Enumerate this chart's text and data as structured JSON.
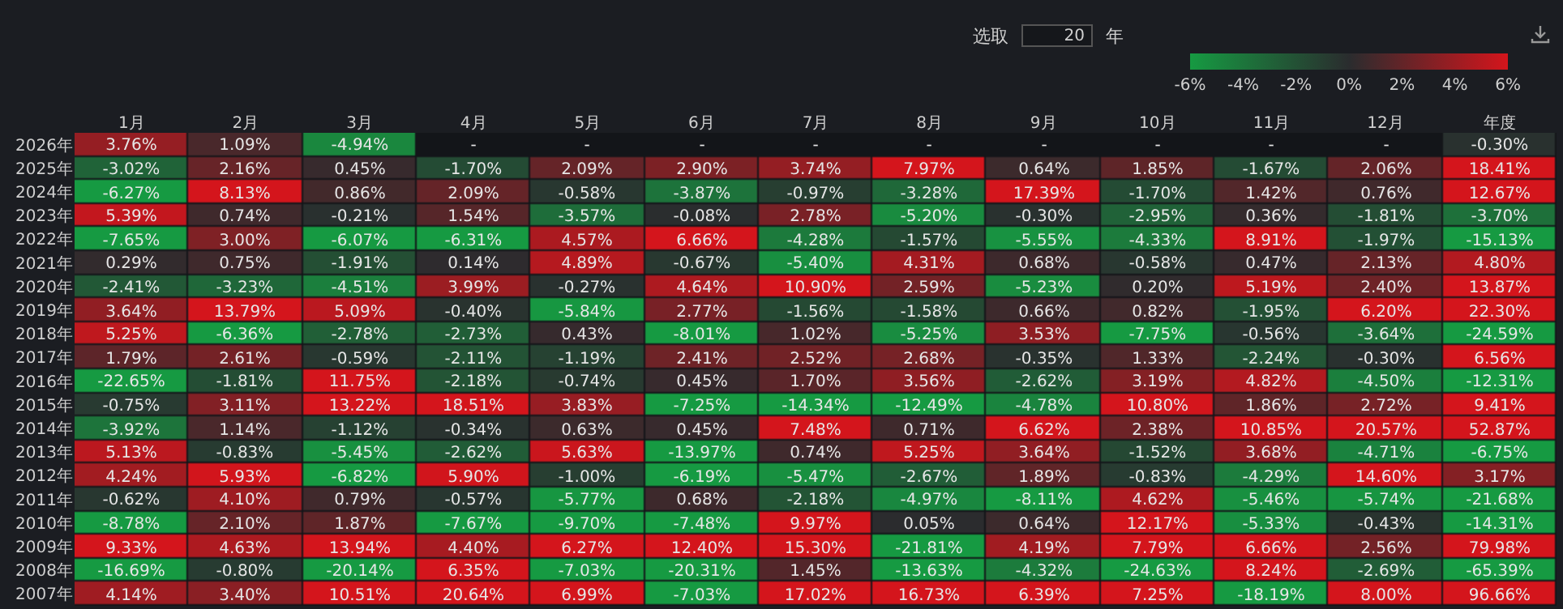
{
  "chart_data": {
    "type": "heatmap",
    "annotations": [
      "选取",
      "20",
      "年"
    ],
    "categories": [
      "1月",
      "2月",
      "3月",
      "4月",
      "5月",
      "6月",
      "7月",
      "8月",
      "9月",
      "10月",
      "11月",
      "12月",
      "年度"
    ],
    "y_categories": [
      "2026年",
      "2025年",
      "2024年",
      "2023年",
      "2022年",
      "2021年",
      "2020年",
      "2019年",
      "2018年",
      "2017年",
      "2016年",
      "2015年",
      "2014年",
      "2013年",
      "2012年",
      "2011年",
      "2010年",
      "2009年",
      "2008年",
      "2007年"
    ],
    "cells": [
      [
        3.76,
        1.09,
        -4.94,
        null,
        null,
        null,
        null,
        null,
        null,
        null,
        null,
        null,
        -0.3
      ],
      [
        -3.02,
        2.16,
        0.45,
        -1.7,
        2.09,
        2.9,
        3.74,
        7.97,
        0.64,
        1.85,
        -1.67,
        2.06,
        18.41
      ],
      [
        -6.27,
        8.13,
        0.86,
        2.09,
        -0.58,
        -3.87,
        -0.97,
        -3.28,
        17.39,
        -1.7,
        1.42,
        0.76,
        12.67
      ],
      [
        5.39,
        0.74,
        -0.21,
        1.54,
        -3.57,
        -0.08,
        2.78,
        -5.2,
        -0.3,
        -2.95,
        0.36,
        -1.81,
        -3.7
      ],
      [
        -7.65,
        3.0,
        -6.07,
        -6.31,
        4.57,
        6.66,
        -4.28,
        -1.57,
        -5.55,
        -4.33,
        8.91,
        -1.97,
        -15.13
      ],
      [
        0.29,
        0.75,
        -1.91,
        0.14,
        4.89,
        -0.67,
        -5.4,
        4.31,
        0.68,
        -0.58,
        0.47,
        2.13,
        4.8
      ],
      [
        -2.41,
        -3.23,
        -4.51,
        3.99,
        -0.27,
        4.64,
        10.9,
        2.59,
        -5.23,
        0.2,
        5.19,
        2.4,
        13.87
      ],
      [
        3.64,
        13.79,
        5.09,
        -0.4,
        -5.84,
        2.77,
        -1.56,
        -1.58,
        0.66,
        0.82,
        -1.95,
        6.2,
        22.3
      ],
      [
        5.25,
        -6.36,
        -2.78,
        -2.73,
        0.43,
        -8.01,
        1.02,
        -5.25,
        3.53,
        -7.75,
        -0.56,
        -3.64,
        -24.59
      ],
      [
        1.79,
        2.61,
        -0.59,
        -2.11,
        -1.19,
        2.41,
        2.52,
        2.68,
        -0.35,
        1.33,
        -2.24,
        -0.3,
        6.56
      ],
      [
        -22.65,
        -1.81,
        11.75,
        -2.18,
        -0.74,
        0.45,
        1.7,
        3.56,
        -2.62,
        3.19,
        4.82,
        -4.5,
        -12.31
      ],
      [
        -0.75,
        3.11,
        13.22,
        18.51,
        3.83,
        -7.25,
        -14.34,
        -12.49,
        -4.78,
        10.8,
        1.86,
        2.72,
        9.41
      ],
      [
        -3.92,
        1.14,
        -1.12,
        -0.34,
        0.63,
        0.45,
        7.48,
        0.71,
        6.62,
        2.38,
        10.85,
        20.57,
        52.87
      ],
      [
        5.13,
        -0.83,
        -5.45,
        -2.62,
        5.63,
        -13.97,
        0.74,
        5.25,
        3.64,
        -1.52,
        3.68,
        -4.71,
        -6.75
      ],
      [
        4.24,
        5.93,
        -6.82,
        5.9,
        -1.0,
        -6.19,
        -5.47,
        -2.67,
        1.89,
        -0.83,
        -4.29,
        14.6,
        3.17
      ],
      [
        -0.62,
        4.1,
        0.79,
        -0.57,
        -5.77,
        0.68,
        -2.18,
        -4.97,
        -8.11,
        4.62,
        -5.46,
        -5.74,
        -21.68
      ],
      [
        -8.78,
        2.1,
        1.87,
        -7.67,
        -9.7,
        -7.48,
        9.97,
        0.05,
        0.64,
        12.17,
        -5.33,
        -0.43,
        -14.31
      ],
      [
        9.33,
        4.63,
        13.94,
        4.4,
        6.27,
        12.4,
        15.3,
        -21.81,
        4.19,
        7.79,
        6.66,
        2.56,
        79.98
      ],
      [
        -16.69,
        -0.8,
        -20.14,
        6.35,
        -7.03,
        -20.31,
        1.45,
        -13.63,
        -4.32,
        -24.63,
        8.24,
        -2.69,
        -65.39
      ],
      [
        4.14,
        3.4,
        10.51,
        20.64,
        6.99,
        -7.03,
        17.02,
        16.73,
        6.39,
        7.25,
        -18.19,
        8.0,
        96.66
      ]
    ],
    "cell_labels": [
      [
        "3.76%",
        "1.09%",
        "-4.94%",
        "-",
        "-",
        "-",
        "-",
        "-",
        "-",
        "-",
        "-",
        "-",
        "-0.30%"
      ],
      [
        "-3.02%",
        "2.16%",
        "0.45%",
        "-1.70%",
        "2.09%",
        "2.90%",
        "3.74%",
        "7.97%",
        "0.64%",
        "1.85%",
        "-1.67%",
        "2.06%",
        "18.41%"
      ],
      [
        "-6.27%",
        "8.13%",
        "0.86%",
        "2.09%",
        "-0.58%",
        "-3.87%",
        "-0.97%",
        "-3.28%",
        "17.39%",
        "-1.70%",
        "1.42%",
        "0.76%",
        "12.67%"
      ],
      [
        "5.39%",
        "0.74%",
        "-0.21%",
        "1.54%",
        "-3.57%",
        "-0.08%",
        "2.78%",
        "-5.20%",
        "-0.30%",
        "-2.95%",
        "0.36%",
        "-1.81%",
        "-3.70%"
      ],
      [
        "-7.65%",
        "3.00%",
        "-6.07%",
        "-6.31%",
        "4.57%",
        "6.66%",
        "-4.28%",
        "-1.57%",
        "-5.55%",
        "-4.33%",
        "8.91%",
        "-1.97%",
        "-15.13%"
      ],
      [
        "0.29%",
        "0.75%",
        "-1.91%",
        "0.14%",
        "4.89%",
        "-0.67%",
        "-5.40%",
        "4.31%",
        "0.68%",
        "-0.58%",
        "0.47%",
        "2.13%",
        "4.80%"
      ],
      [
        "-2.41%",
        "-3.23%",
        "-4.51%",
        "3.99%",
        "-0.27%",
        "4.64%",
        "10.90%",
        "2.59%",
        "-5.23%",
        "0.20%",
        "5.19%",
        "2.40%",
        "13.87%"
      ],
      [
        "3.64%",
        "13.79%",
        "5.09%",
        "-0.40%",
        "-5.84%",
        "2.77%",
        "-1.56%",
        "-1.58%",
        "0.66%",
        "0.82%",
        "-1.95%",
        "6.20%",
        "22.30%"
      ],
      [
        "5.25%",
        "-6.36%",
        "-2.78%",
        "-2.73%",
        "0.43%",
        "-8.01%",
        "1.02%",
        "-5.25%",
        "3.53%",
        "-7.75%",
        "-0.56%",
        "-3.64%",
        "-24.59%"
      ],
      [
        "1.79%",
        "2.61%",
        "-0.59%",
        "-2.11%",
        "-1.19%",
        "2.41%",
        "2.52%",
        "2.68%",
        "-0.35%",
        "1.33%",
        "-2.24%",
        "-0.30%",
        "6.56%"
      ],
      [
        "-22.65%",
        "-1.81%",
        "11.75%",
        "-2.18%",
        "-0.74%",
        "0.45%",
        "1.70%",
        "3.56%",
        "-2.62%",
        "3.19%",
        "4.82%",
        "-4.50%",
        "-12.31%"
      ],
      [
        "-0.75%",
        "3.11%",
        "13.22%",
        "18.51%",
        "3.83%",
        "-7.25%",
        "-14.34%",
        "-12.49%",
        "-4.78%",
        "10.80%",
        "1.86%",
        "2.72%",
        "9.41%"
      ],
      [
        "-3.92%",
        "1.14%",
        "-1.12%",
        "-0.34%",
        "0.63%",
        "0.45%",
        "7.48%",
        "0.71%",
        "6.62%",
        "2.38%",
        "10.85%",
        "20.57%",
        "52.87%"
      ],
      [
        "5.13%",
        "-0.83%",
        "-5.45%",
        "-2.62%",
        "5.63%",
        "-13.97%",
        "0.74%",
        "5.25%",
        "3.64%",
        "-1.52%",
        "3.68%",
        "-4.71%",
        "-6.75%"
      ],
      [
        "4.24%",
        "5.93%",
        "-6.82%",
        "5.90%",
        "-1.00%",
        "-6.19%",
        "-5.47%",
        "-2.67%",
        "1.89%",
        "-0.83%",
        "-4.29%",
        "14.60%",
        "3.17%"
      ],
      [
        "-0.62%",
        "4.10%",
        "0.79%",
        "-0.57%",
        "-5.77%",
        "0.68%",
        "-2.18%",
        "-4.97%",
        "-8.11%",
        "4.62%",
        "-5.46%",
        "-5.74%",
        "-21.68%"
      ],
      [
        "-8.78%",
        "2.10%",
        "1.87%",
        "-7.67%",
        "-9.70%",
        "-7.48%",
        "9.97%",
        "0.05%",
        "0.64%",
        "12.17%",
        "-5.33%",
        "-0.43%",
        "-14.31%"
      ],
      [
        "9.33%",
        "4.63%",
        "13.94%",
        "4.40%",
        "6.27%",
        "12.40%",
        "15.30%",
        "-21.81%",
        "4.19%",
        "7.79%",
        "6.66%",
        "2.56%",
        "79.98%"
      ],
      [
        "-16.69%",
        "-0.80%",
        "-20.14%",
        "6.35%",
        "-7.03%",
        "-20.31%",
        "1.45%",
        "-13.63%",
        "-4.32%",
        "-24.63%",
        "8.24%",
        "-2.69%",
        "-65.39%"
      ],
      [
        "4.14%",
        "3.40%",
        "10.51%",
        "20.64%",
        "6.99%",
        "-7.03%",
        "17.02%",
        "16.73%",
        "6.39%",
        "7.25%",
        "-18.19%",
        "8.00%",
        "96.66%"
      ]
    ],
    "clim": [
      -6,
      6
    ],
    "cticks": [
      {
        "value": -6,
        "label": "-6%"
      },
      {
        "value": -4,
        "label": "-4%"
      },
      {
        "value": -2,
        "label": "-2%"
      },
      {
        "value": 0,
        "label": "0%"
      },
      {
        "value": 2,
        "label": "2%"
      },
      {
        "value": 4,
        "label": "4%"
      },
      {
        "value": 6,
        "label": "6%"
      }
    ]
  }
}
